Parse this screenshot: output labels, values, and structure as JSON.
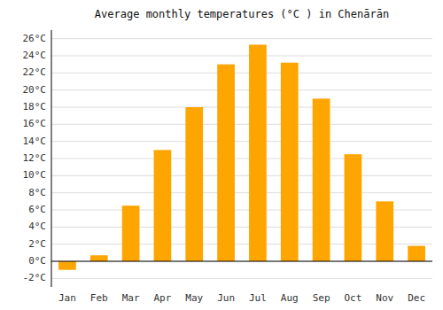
{
  "chart_data": {
    "type": "bar",
    "title": "Average monthly temperatures (°C ) in Chenārān",
    "categories": [
      "Jan",
      "Feb",
      "Mar",
      "Apr",
      "May",
      "Jun",
      "Jul",
      "Aug",
      "Sep",
      "Oct",
      "Nov",
      "Dec"
    ],
    "values": [
      -1.0,
      0.7,
      6.5,
      13.0,
      18.0,
      23.0,
      25.3,
      23.2,
      19.0,
      12.5,
      7.0,
      1.8
    ],
    "color": "#FFA500",
    "ylim": [
      -3,
      27
    ],
    "yticks": [
      {
        "value": -2,
        "label": "-2°C"
      },
      {
        "value": 0,
        "label": "0°C"
      },
      {
        "value": 2,
        "label": "2°C"
      },
      {
        "value": 4,
        "label": "4°C"
      },
      {
        "value": 6,
        "label": "6°C"
      },
      {
        "value": 8,
        "label": "8°C"
      },
      {
        "value": 10,
        "label": "10°C"
      },
      {
        "value": 12,
        "label": "12°C"
      },
      {
        "value": 14,
        "label": "14°C"
      },
      {
        "value": 16,
        "label": "16°C"
      },
      {
        "value": 18,
        "label": "18°C"
      },
      {
        "value": 20,
        "label": "20°C"
      },
      {
        "value": 22,
        "label": "22°C"
      },
      {
        "value": 24,
        "label": "24°C"
      },
      {
        "value": 26,
        "label": "26°C"
      }
    ],
    "grid": true
  }
}
